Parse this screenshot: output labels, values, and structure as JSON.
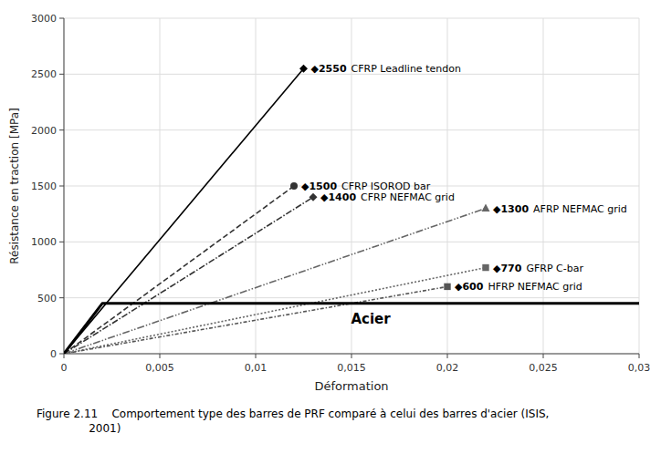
{
  "chart_data": {
    "type": "line",
    "xlabel": "Déformation",
    "ylabel": "Résistance en traction [MPa]",
    "caption": "Figure 2.11    Comportement type des barres de PRF comparé à celui des barres d'acier (ISIS,\n               2001)",
    "xlim": [
      0,
      0.03
    ],
    "ylim": [
      0,
      3000
    ],
    "xticks": [
      0,
      {
        "value": 0.005,
        "label": "0,005"
      },
      {
        "value": 0.01,
        "label": "0,01"
      },
      {
        "value": 0.015,
        "label": "0,015"
      },
      {
        "value": 0.02,
        "label": "0,02"
      },
      {
        "value": 0.025,
        "label": "0,025"
      },
      {
        "value": 0.03,
        "label": "0,03"
      }
    ],
    "yticks": [
      0,
      500,
      1000,
      1500,
      2000,
      2500,
      3000
    ],
    "grid": true,
    "data_labels": true,
    "series": [
      {
        "name": "CFRP Leadline tendon",
        "color": "#000000",
        "line_style": "solid",
        "marker": "diamond",
        "x": [
          0,
          0.0125
        ],
        "values": [
          0,
          2550
        ],
        "value_labels": [
          null,
          "◆2550"
        ]
      },
      {
        "name": "CFRP ISOROD bar",
        "color": "#333333",
        "line_style": "dashed",
        "marker": "circle",
        "x": [
          0,
          0.012
        ],
        "values": [
          0,
          1500
        ],
        "value_labels": [
          null,
          "◆1500"
        ]
      },
      {
        "name": "CFRP NEFMAC grid",
        "color": "#333333",
        "line_style": "dashdot",
        "marker": "diamond",
        "x": [
          0,
          0.013
        ],
        "values": [
          0,
          1400
        ],
        "value_labels": [
          null,
          "◆1400"
        ]
      },
      {
        "name": "AFRP NEFMAC grid",
        "color": "#666666",
        "line_style": "dashdotdot",
        "marker": "triangle",
        "x": [
          0,
          0.022
        ],
        "values": [
          0,
          1300
        ],
        "value_labels": [
          null,
          "◆1300"
        ]
      },
      {
        "name": "GFRP C-bar",
        "color": "#666666",
        "line_style": "dotted",
        "marker": "square",
        "x": [
          0,
          0.022
        ],
        "values": [
          0,
          770
        ],
        "value_labels": [
          null,
          "◆770"
        ]
      },
      {
        "name": "HFRP NEFMAC grid",
        "color": "#555555",
        "line_style": "shortdashdot",
        "marker": "square",
        "x": [
          0,
          0.02
        ],
        "values": [
          0,
          600
        ],
        "value_labels": [
          null,
          "◆600"
        ]
      },
      {
        "name": "Acier",
        "color": "#000000",
        "line_style": "solid",
        "x": [
          0,
          0.002,
          0.03
        ],
        "values": [
          0,
          450,
          450
        ]
      }
    ]
  }
}
